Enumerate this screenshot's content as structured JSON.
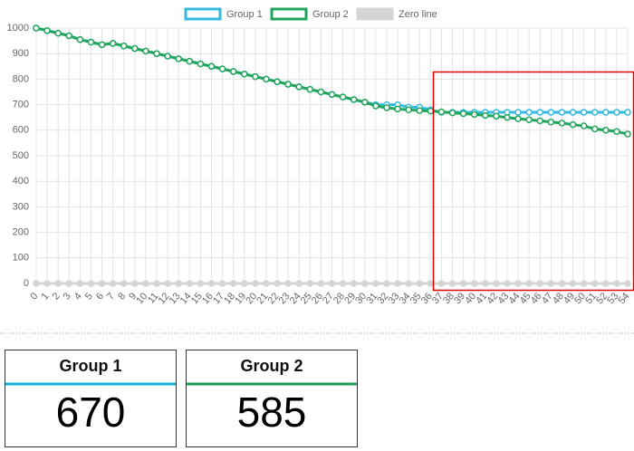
{
  "chart_data": {
    "type": "line",
    "x": [
      0,
      1,
      2,
      3,
      4,
      5,
      6,
      7,
      8,
      9,
      10,
      11,
      12,
      13,
      14,
      15,
      16,
      17,
      18,
      19,
      20,
      21,
      22,
      23,
      24,
      25,
      26,
      27,
      28,
      29,
      30,
      31,
      32,
      33,
      34,
      35,
      36,
      37,
      38,
      39,
      40,
      41,
      42,
      43,
      44,
      45,
      46,
      47,
      48,
      49,
      50,
      51,
      52,
      53,
      54
    ],
    "xlim": [
      0,
      54
    ],
    "ylim": [
      0,
      1000
    ],
    "yticks": [
      0,
      100,
      200,
      300,
      400,
      500,
      600,
      700,
      800,
      900,
      1000
    ],
    "grid": true,
    "series": [
      {
        "name": "Group 1",
        "color": "#36b9e0",
        "values": [
          1000,
          990,
          980,
          970,
          955,
          945,
          935,
          940,
          930,
          920,
          910,
          900,
          890,
          880,
          870,
          860,
          850,
          840,
          830,
          820,
          810,
          800,
          790,
          780,
          770,
          760,
          750,
          740,
          730,
          720,
          710,
          700,
          700,
          700,
          690,
          690,
          680,
          670,
          670,
          670,
          670,
          670,
          670,
          670,
          670,
          670,
          670,
          670,
          670,
          670,
          670,
          670,
          670,
          670,
          670
        ]
      },
      {
        "name": "Group 2",
        "color": "#22a55b",
        "values": [
          1000,
          990,
          980,
          970,
          955,
          945,
          935,
          940,
          930,
          920,
          910,
          900,
          890,
          880,
          870,
          860,
          850,
          840,
          830,
          820,
          810,
          800,
          790,
          780,
          770,
          760,
          750,
          740,
          730,
          720,
          710,
          695,
          688,
          683,
          680,
          677,
          675,
          672,
          668,
          665,
          662,
          658,
          655,
          650,
          645,
          641,
          637,
          632,
          628,
          622,
          617,
          605,
          600,
          595,
          585
        ]
      },
      {
        "name": "Zero line",
        "color": "#d4d4d4",
        "values": [
          0,
          0,
          0,
          0,
          0,
          0,
          0,
          0,
          0,
          0,
          0,
          0,
          0,
          0,
          0,
          0,
          0,
          0,
          0,
          0,
          0,
          0,
          0,
          0,
          0,
          0,
          0,
          0,
          0,
          0,
          0,
          0,
          0,
          0,
          0,
          0,
          0,
          0,
          0,
          0,
          0,
          0,
          0,
          0,
          0,
          0,
          0,
          0,
          0,
          0,
          0,
          0,
          0,
          0,
          0
        ]
      }
    ]
  },
  "cards": [
    {
      "title": "Group 1",
      "value": 670,
      "color": "#1ab0d8"
    },
    {
      "title": "Group 2",
      "value": 585,
      "color": "#1a9e55"
    }
  ]
}
